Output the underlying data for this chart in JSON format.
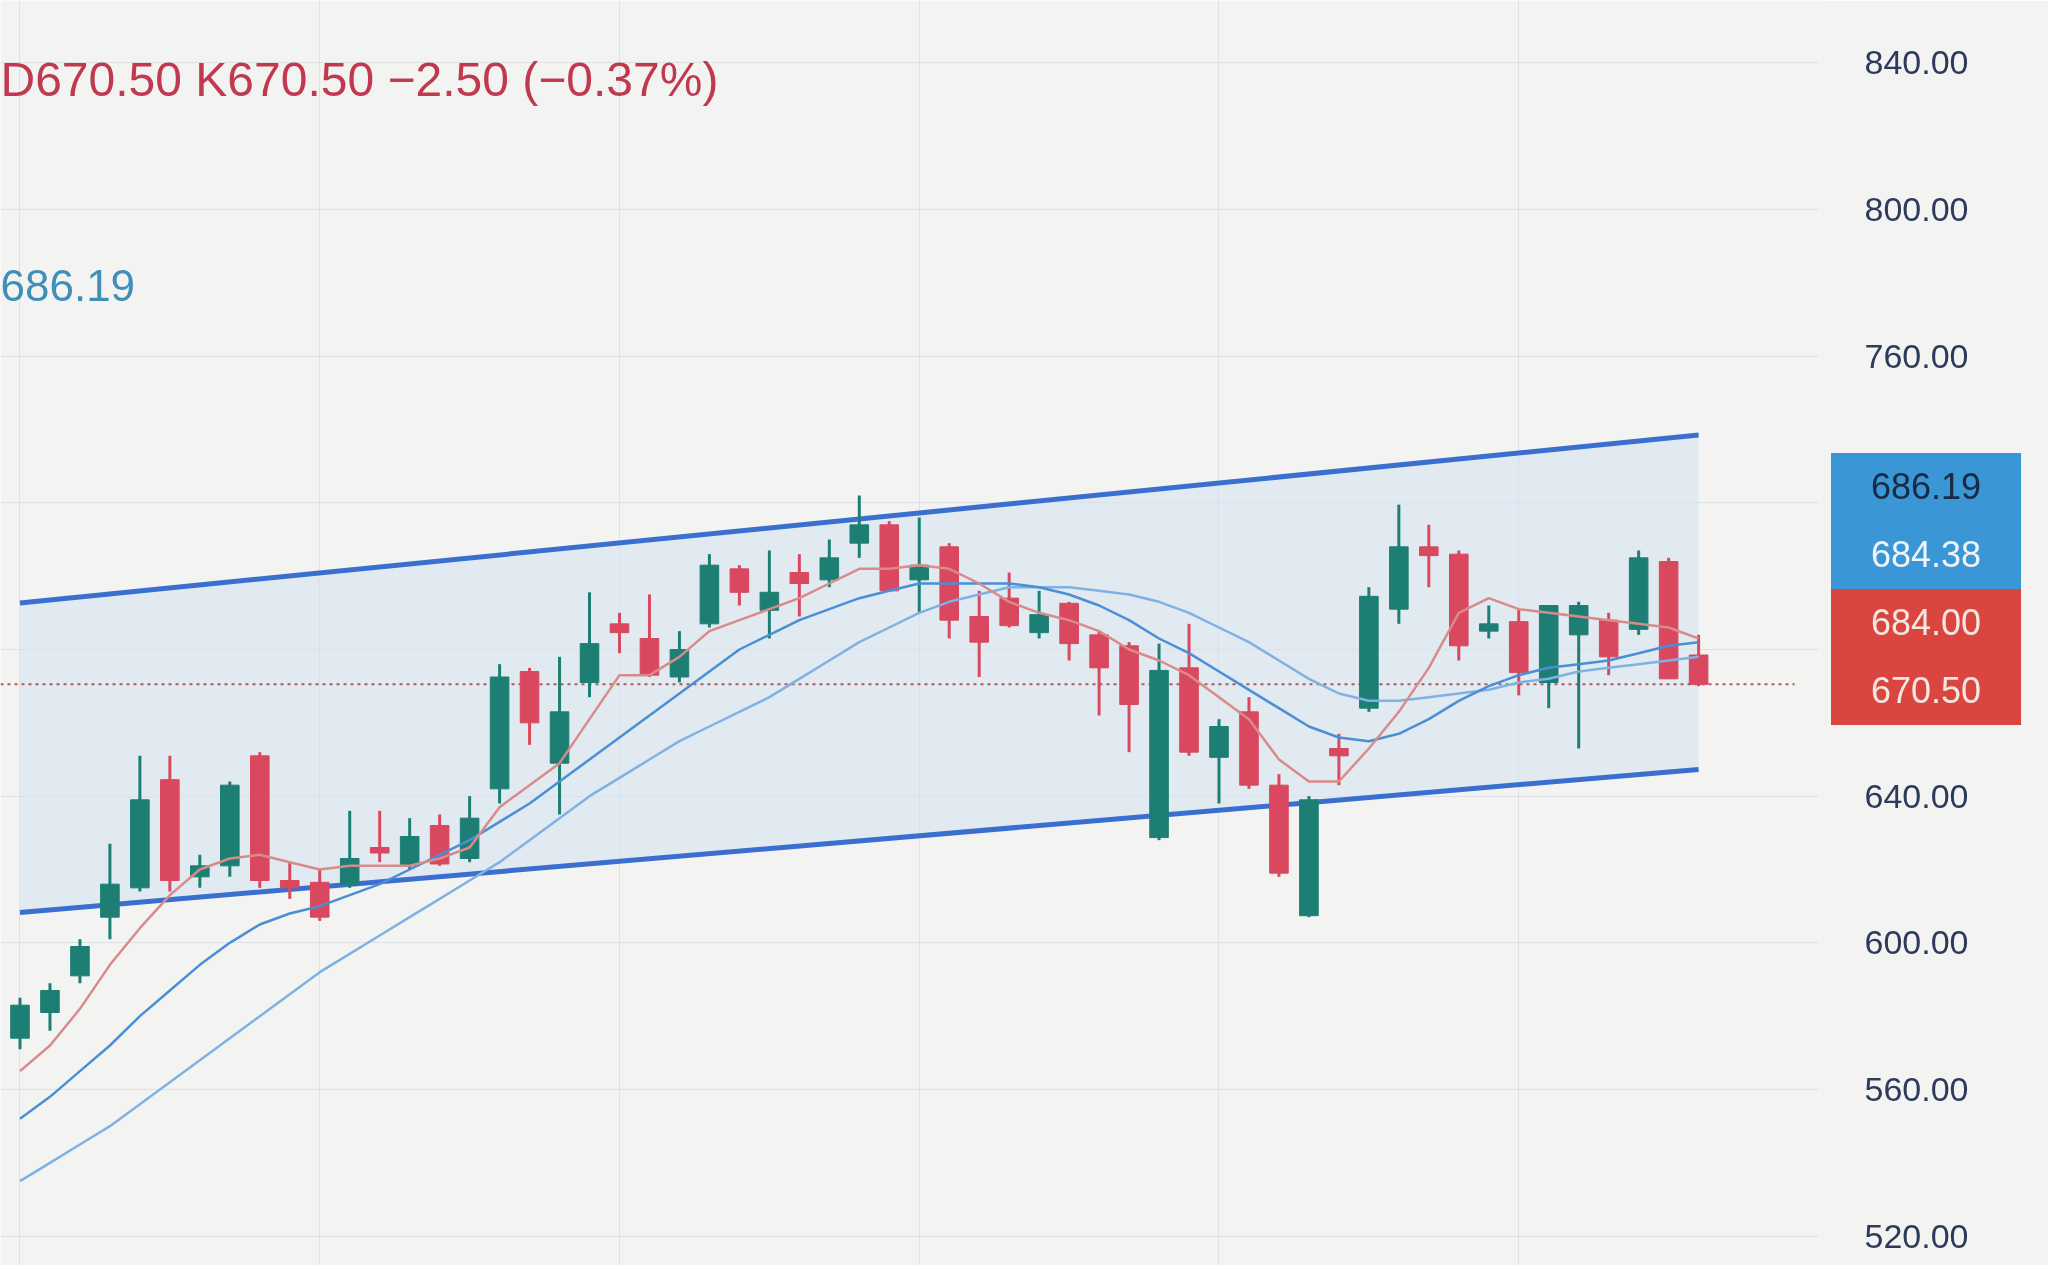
{
  "chart_data": {
    "type": "candlestick",
    "categories": [
      null,
      null,
      null,
      null,
      null,
      null,
      null,
      null,
      null,
      null,
      null,
      null,
      null,
      null,
      null,
      null,
      null,
      null,
      null,
      null,
      null,
      null,
      null,
      null,
      null,
      null,
      null,
      null,
      null,
      null,
      null,
      null,
      null,
      null,
      null,
      null,
      null,
      null,
      null,
      null,
      null,
      null,
      null,
      null,
      null,
      null,
      null,
      null,
      null,
      null,
      null,
      null,
      null,
      null,
      null,
      null,
      null
    ],
    "ohlc": [
      [
        574,
        585,
        571,
        583
      ],
      [
        581,
        589,
        576,
        587
      ],
      [
        591,
        601,
        589,
        599
      ],
      [
        607,
        627,
        601,
        616
      ],
      [
        615,
        651,
        614,
        639
      ],
      [
        644.5,
        651,
        614,
        617
      ],
      [
        618,
        624,
        615,
        621
      ],
      [
        621,
        644,
        618,
        643
      ],
      [
        651,
        652,
        615,
        617
      ],
      [
        617,
        622,
        612,
        615
      ],
      [
        616.5,
        620,
        606,
        607
      ],
      [
        616,
        636,
        615,
        623
      ],
      [
        626,
        636,
        622,
        624.5
      ],
      [
        621,
        634,
        620,
        629
      ],
      [
        632,
        635,
        621,
        621.5
      ],
      [
        623,
        640,
        622,
        634
      ],
      [
        642,
        676,
        638,
        672.5
      ],
      [
        674,
        675,
        654,
        660
      ],
      [
        649,
        678,
        635,
        663
      ],
      [
        671,
        695.6,
        667,
        681.6
      ],
      [
        687,
        690,
        679,
        684.6
      ],
      [
        683,
        695,
        672.5,
        673
      ],
      [
        672.5,
        685,
        671,
        680
      ],
      [
        687,
        706,
        686,
        703
      ],
      [
        702,
        703,
        692,
        695.6
      ],
      [
        690.7,
        707,
        683,
        695.6
      ],
      [
        701,
        706,
        689,
        698
      ],
      [
        699,
        710,
        697,
        705
      ],
      [
        709,
        722,
        705,
        714
      ],
      [
        714,
        715,
        696,
        696
      ],
      [
        699,
        716,
        690,
        703
      ],
      [
        708,
        709,
        683,
        688
      ],
      [
        689,
        696,
        672.5,
        682
      ],
      [
        694,
        701,
        686,
        686.5
      ],
      [
        684.6,
        696,
        683,
        689.5
      ],
      [
        692.6,
        693,
        677,
        681.6
      ],
      [
        684,
        685,
        662,
        675
      ],
      [
        681,
        682,
        652,
        665
      ],
      [
        628.7,
        681.6,
        628,
        674.3
      ],
      [
        675,
        687,
        651,
        652
      ],
      [
        650.6,
        661,
        638,
        659
      ],
      [
        663,
        667,
        642,
        643
      ],
      [
        643,
        646,
        618,
        619
      ],
      [
        607.4,
        640,
        607,
        639
      ],
      [
        653,
        657,
        643,
        651
      ],
      [
        664,
        697,
        663,
        694.5
      ],
      [
        691,
        719.5,
        687,
        708
      ],
      [
        708,
        714,
        697,
        705.6
      ],
      [
        706,
        707,
        677,
        681
      ],
      [
        685,
        692,
        683,
        687
      ],
      [
        687.6,
        691,
        667.5,
        673.7
      ],
      [
        671,
        692,
        664,
        692
      ],
      [
        684,
        693,
        653,
        692
      ],
      [
        688,
        690,
        673,
        678
      ],
      [
        685.5,
        707,
        684,
        705
      ],
      [
        704,
        705,
        672,
        672
      ],
      [
        678.5,
        684,
        670,
        670.5
      ]
    ],
    "colors": [
      "#1d7f74",
      "#1d7f74",
      "#1d7f74",
      "#1d7f74",
      "#1d7f74",
      "#d9485f",
      "#1d7f74",
      "#1d7f74",
      "#d9485f",
      "#d9485f",
      "#d9485f",
      "#1d7f74",
      "#d9485f",
      "#1d7f74",
      "#d9485f",
      "#1d7f74",
      "#1d7f74",
      "#d9485f",
      "#1d7f74",
      "#1d7f74",
      "#d9485f",
      "#d9485f",
      "#1d7f74",
      "#1d7f74",
      "#d9485f",
      "#1d7f74",
      "#d9485f",
      "#1d7f74",
      "#1d7f74",
      "#d9485f",
      "#1d7f74",
      "#d9485f",
      "#d9485f",
      "#d9485f",
      "#1d7f74",
      "#d9485f",
      "#d9485f",
      "#d9485f",
      "#1d7f74",
      "#d9485f",
      "#1d7f74",
      "#d9485f",
      "#d9485f",
      "#1d7f74",
      "#d9485f",
      "#1d7f74",
      "#1d7f74",
      "#d9485f",
      "#d9485f",
      "#1d7f74",
      "#d9485f",
      "#1d7f74",
      "#1d7f74",
      "#d9485f",
      "#1d7f74",
      "#d9485f",
      "#d9485f"
    ],
    "series": [
      {
        "type": "line",
        "color": "#3a6fd0",
        "values": [
          692.7,
          null,
          null,
          null,
          null,
          null,
          null,
          null,
          null,
          null,
          null,
          null,
          null,
          null,
          null,
          null,
          null,
          null,
          null,
          null,
          null,
          null,
          null,
          null,
          null,
          null,
          null,
          null,
          null,
          null,
          null,
          null,
          null,
          null,
          null,
          null,
          null,
          null,
          null,
          null,
          null,
          null,
          null,
          null,
          null,
          null,
          null,
          null,
          null,
          null,
          null,
          null,
          null,
          null,
          null,
          null,
          738.5
        ],
        "lower": [
          608.3,
          null,
          null,
          null,
          null,
          null,
          null,
          null,
          null,
          null,
          null,
          null,
          null,
          null,
          null,
          null,
          null,
          null,
          null,
          null,
          null,
          null,
          null,
          null,
          null,
          null,
          null,
          null,
          null,
          null,
          null,
          null,
          null,
          null,
          null,
          null,
          null,
          null,
          null,
          null,
          null,
          null,
          null,
          null,
          null,
          null,
          null,
          null,
          null,
          null,
          null,
          null,
          null,
          null,
          null,
          null,
          647.3
        ],
        "upper": [
          692.7,
          null,
          null,
          null,
          null,
          null,
          null,
          null,
          null,
          null,
          null,
          null,
          null,
          null,
          null,
          null,
          null,
          null,
          null,
          null,
          null,
          null,
          null,
          null,
          null,
          null,
          null,
          null,
          null,
          null,
          null,
          null,
          null,
          null,
          null,
          null,
          null,
          null,
          null,
          null,
          null,
          null,
          null,
          null,
          null,
          null,
          null,
          null,
          null,
          null,
          null,
          null,
          null,
          null,
          null,
          null,
          738.5
        ]
      },
      {
        "type": "line",
        "color": "#3a6fd0",
        "values": [
          608.3,
          null,
          null,
          null,
          null,
          null,
          null,
          null,
          null,
          null,
          null,
          null,
          null,
          null,
          null,
          null,
          null,
          null,
          null,
          null,
          null,
          null,
          null,
          null,
          null,
          null,
          null,
          null,
          null,
          null,
          null,
          null,
          null,
          null,
          null,
          null,
          null,
          null,
          null,
          null,
          null,
          null,
          null,
          null,
          null,
          null,
          null,
          null,
          null,
          null,
          null,
          null,
          null,
          null,
          null,
          null,
          647.3
        ]
      },
      {
        "type": "line",
        "color": "#7fb2e3",
        "values": [
          535,
          540,
          545,
          550,
          556,
          562,
          568,
          574,
          580,
          586,
          592,
          597,
          602,
          607,
          612,
          617,
          622,
          628,
          634,
          640,
          645,
          650,
          655,
          659,
          663,
          667,
          672,
          677,
          682,
          686,
          690,
          693,
          695,
          697,
          697,
          697,
          696,
          695,
          693,
          690,
          686,
          682,
          677,
          672,
          668,
          666,
          666,
          667,
          668,
          669,
          671,
          672,
          674,
          675,
          676,
          677,
          678
        ]
      },
      {
        "type": "line",
        "color": "#4a8fd6",
        "values": [
          552,
          558,
          565,
          572,
          580,
          587,
          594,
          600,
          605,
          608,
          610,
          613,
          616,
          620,
          624,
          628,
          633,
          638,
          644,
          650,
          656,
          662,
          668,
          674,
          680,
          684,
          688,
          691,
          694,
          696,
          698,
          698,
          698,
          698,
          697,
          695,
          692,
          688,
          683,
          679,
          674,
          669,
          664,
          659,
          656,
          655,
          657,
          661,
          666,
          670,
          673,
          675,
          676,
          677,
          679,
          681,
          682
        ]
      },
      {
        "type": "line",
        "color": "#d98a8a",
        "values": [
          565,
          572,
          582,
          594,
          604,
          613,
          620,
          623,
          624,
          622,
          620,
          621,
          621,
          621,
          623,
          626,
          637,
          643,
          649,
          661,
          673,
          673,
          678,
          685,
          688,
          691,
          694,
          698,
          702,
          702,
          703,
          702,
          698,
          693,
          690,
          688,
          685,
          680,
          677,
          673,
          667,
          661,
          650,
          644,
          644,
          653,
          663,
          675,
          690,
          694,
          691,
          690,
          689,
          688,
          687,
          686,
          683
        ]
      }
    ],
    "ref_lines": [
      {
        "axis": "y",
        "value": 670.5,
        "color": "#b05a5a",
        "line_style": "dotted"
      }
    ],
    "ylim": [
      512,
      857
    ],
    "yticks": [
      {
        "value": 520,
        "label": "520.00"
      },
      {
        "value": 560,
        "label": "560.00"
      },
      {
        "value": 600,
        "label": "600.00"
      },
      {
        "value": 640,
        "label": "640.00"
      },
      {
        "value": 680,
        "label": null
      },
      {
        "value": 720,
        "label": null
      },
      {
        "value": 760,
        "label": "760.00"
      },
      {
        "value": 800,
        "label": "800.00"
      },
      {
        "value": 840,
        "label": "840.00"
      }
    ],
    "tick_labels": "y",
    "grid": true,
    "annotations": [
      "D670.50 K670.50 −2.50 (−0.37%)",
      "686.19",
      "686.19",
      "684.38",
      "684.00",
      "670.50"
    ]
  }
}
